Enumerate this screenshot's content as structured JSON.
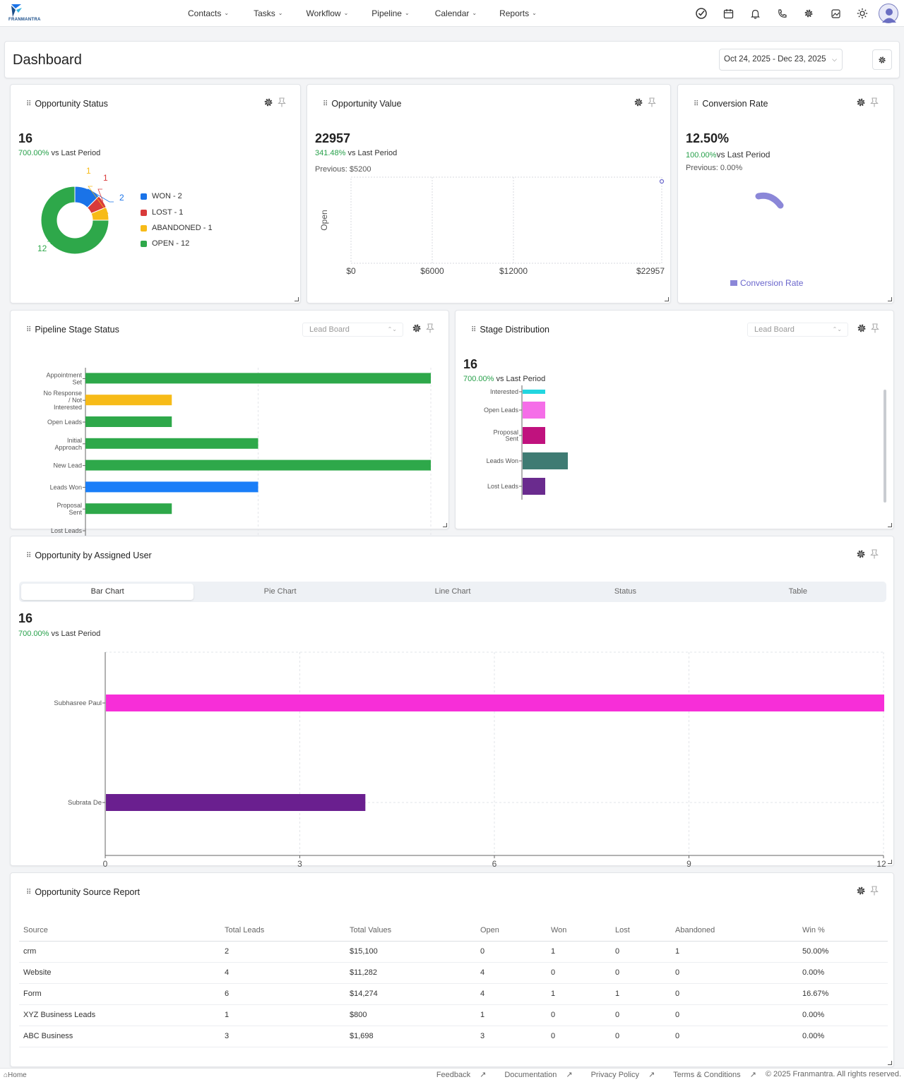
{
  "brand": {
    "name": "FRANMANTRA"
  },
  "nav": {
    "items": [
      {
        "label": "Contacts"
      },
      {
        "label": "Tasks"
      },
      {
        "label": "Workflow"
      },
      {
        "label": "Pipeline"
      },
      {
        "label": "Calendar"
      },
      {
        "label": "Reports"
      }
    ],
    "icons": [
      "check-circle-icon",
      "calendar-icon",
      "bell-icon",
      "phone-icon",
      "gear-icon",
      "image-icon",
      "sun-icon",
      "user-avatar"
    ]
  },
  "header": {
    "title": "Dashboard",
    "date_range": "Oct 24, 2025 - Dec 23, 2025"
  },
  "opportunity_status": {
    "title": "Opportunity Status",
    "total": "16",
    "change_pct": "700.00%",
    "change_text": "vs Last Period",
    "legend": [
      "WON - 2",
      "LOST - 1",
      "ABANDONED - 1",
      "OPEN - 12"
    ],
    "colors": {
      "won": "#1a73e8",
      "lost": "#d93a3a",
      "abandoned": "#f7bb18",
      "open": "#2ea84a"
    }
  },
  "opportunity_value": {
    "title": "Opportunity Value",
    "total": "22957",
    "change_pct": "341.48%",
    "change_text": "vs Last Period",
    "previous": "Previous: $5200"
  },
  "conversion_rate": {
    "title": "Conversion Rate",
    "total": "12.50%",
    "change_pct": "100.00%",
    "change_text": "vs Last Period",
    "previous": "Previous: 0.00%",
    "legend_label": "Conversion Rate"
  },
  "pipeline_stage": {
    "title": "Pipeline Stage Status",
    "board": "Lead Board"
  },
  "stage_distribution": {
    "title": "Stage Distribution",
    "board": "Lead Board",
    "total": "16",
    "change_pct": "700.00%",
    "change_text": "vs Last Period"
  },
  "assigned_user": {
    "title": "Opportunity by Assigned User",
    "tabs": [
      "Bar Chart",
      "Pie Chart",
      "Line Chart",
      "Status",
      "Table"
    ],
    "total": "16",
    "change_pct": "700.00%",
    "change_text": "vs Last Period"
  },
  "source_report": {
    "title": "Opportunity Source Report",
    "columns": [
      "Source",
      "Total Leads",
      "Total Values",
      "Open",
      "Won",
      "Lost",
      "Abandoned",
      "Win %"
    ],
    "rows": [
      [
        "crm",
        "2",
        "$15,100",
        "0",
        "1",
        "0",
        "1",
        "50.00%"
      ],
      [
        "Website",
        "4",
        "$11,282",
        "4",
        "0",
        "0",
        "0",
        "0.00%"
      ],
      [
        "Form",
        "6",
        "$14,274",
        "4",
        "1",
        "1",
        "0",
        "16.67%"
      ],
      [
        "XYZ Business Leads",
        "1",
        "$800",
        "1",
        "0",
        "0",
        "0",
        "0.00%"
      ],
      [
        "ABC Business",
        "3",
        "$1,698",
        "3",
        "0",
        "0",
        "0",
        "0.00%"
      ]
    ]
  },
  "footer": {
    "home": "Home",
    "links": [
      "Feedback",
      "Documentation",
      "Privacy Policy",
      "Terms & Conditions"
    ],
    "copyright": "© 2025 Franmantra. All rights reserved."
  },
  "chart_data": [
    {
      "type": "pie",
      "categories": [
        "WON",
        "LOST",
        "ABANDONED",
        "OPEN"
      ],
      "values": [
        2,
        1,
        1,
        12
      ],
      "colors": [
        "#1a73e8",
        "#d93a3a",
        "#f7bb18",
        "#2ea84a"
      ],
      "legend": "right"
    },
    {
      "type": "scatter",
      "series": [
        {
          "values": [
            22957
          ]
        }
      ],
      "ylabel": "Open",
      "x_ticks": [
        "$0",
        "$6000",
        "$12000",
        "$22957"
      ],
      "xlim": [
        0,
        22957
      ],
      "grid": true
    },
    {
      "type": "pie",
      "values": [
        12.5
      ],
      "legend": "bottom",
      "colors": [
        "#8b87d8"
      ]
    },
    {
      "type": "bar",
      "orientation": "horizontal",
      "categories": [
        "Appointment Set",
        "No Response / Not Interested",
        "Open Leads",
        "Initial Approach",
        "New Lead",
        "Leads Won",
        "Proposal Sent",
        "Lost Leads"
      ],
      "values": [
        4,
        1,
        1,
        2,
        4,
        2,
        1,
        0
      ],
      "colors": [
        "#2ea84a",
        "#f7bb18",
        "#2ea84a",
        "#2ea84a",
        "#2ea84a",
        "#1a7ef8",
        "#2ea84a",
        "#2ea84a"
      ],
      "xlim": [
        0,
        4
      ],
      "grid": true
    },
    {
      "type": "bar",
      "orientation": "horizontal",
      "categories": [
        "Interested",
        "Open Leads",
        "Proposal Sent",
        "Leads Won",
        "Lost Leads"
      ],
      "values": [
        1,
        1,
        1,
        2,
        1
      ],
      "colors": [
        "#22d6e0",
        "#f56ee8",
        "#c0127e",
        "#3f7b73",
        "#6a2b8e"
      ]
    },
    {
      "type": "bar",
      "orientation": "horizontal",
      "categories": [
        "Subhasree Paul",
        "Subrata De"
      ],
      "values": [
        12,
        4
      ],
      "colors": [
        "#f72ed8",
        "#6a1f8f"
      ],
      "x_ticks": [
        "0",
        "3",
        "6",
        "9",
        "12"
      ],
      "xlim": [
        0,
        12
      ],
      "grid": true
    }
  ]
}
